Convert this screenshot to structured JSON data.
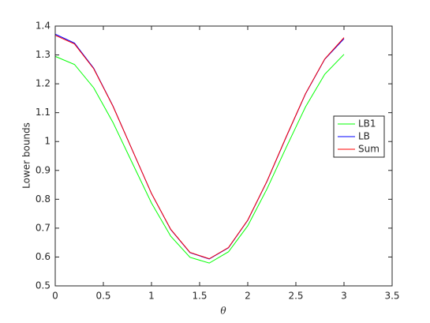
{
  "chart_data": {
    "type": "line",
    "xlabel": "θ",
    "ylabel": "Lower bounds",
    "x": [
      0,
      0.2,
      0.4,
      0.6,
      0.8,
      1.0,
      1.2,
      1.4,
      1.6,
      1.8,
      2.0,
      2.2,
      2.4,
      2.6,
      2.8,
      3.0
    ],
    "series": [
      {
        "name": "LB1",
        "color": "#00ff00",
        "values": [
          1.295,
          1.267,
          1.186,
          1.066,
          0.926,
          0.787,
          0.672,
          0.599,
          0.579,
          0.618,
          0.708,
          0.836,
          0.98,
          1.12,
          1.233,
          1.302
        ]
      },
      {
        "name": "LB",
        "color": "#0000ff",
        "values": [
          1.372,
          1.341,
          1.254,
          1.123,
          0.971,
          0.82,
          0.695,
          0.615,
          0.593,
          0.632,
          0.727,
          0.862,
          1.016,
          1.165,
          1.285,
          1.356
        ]
      },
      {
        "name": "Sum",
        "color": "#ff0000",
        "values": [
          1.368,
          1.338,
          1.252,
          1.122,
          0.971,
          0.82,
          0.696,
          0.616,
          0.594,
          0.633,
          0.728,
          0.863,
          1.017,
          1.166,
          1.286,
          1.36
        ]
      }
    ],
    "xlim": [
      0,
      3.5
    ],
    "xticks": [
      0,
      0.5,
      1,
      1.5,
      2,
      2.5,
      3,
      3.5
    ],
    "ylim": [
      0.5,
      1.4
    ],
    "yticks": [
      0.5,
      0.6,
      0.7,
      0.8,
      0.9,
      1,
      1.1,
      1.2,
      1.3,
      1.4
    ],
    "legend": "right",
    "grid": false
  }
}
